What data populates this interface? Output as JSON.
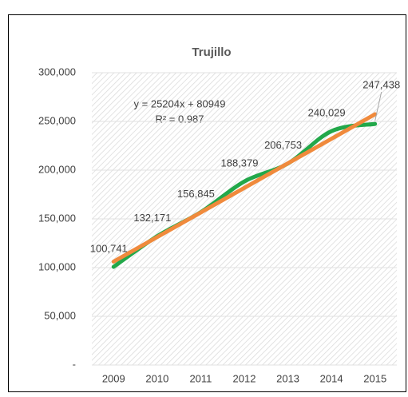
{
  "chart_data": {
    "type": "line",
    "title": "Trujillo",
    "categories": [
      "2009",
      "2010",
      "2011",
      "2012",
      "2013",
      "2014",
      "2015"
    ],
    "series": [
      {
        "name": "Trujillo",
        "color": "#22a84a",
        "values": [
          100741,
          132171,
          156845,
          188379,
          206753,
          240029,
          247438
        ],
        "value_labels": [
          "100,741",
          "132,171",
          "156,845",
          "188,379",
          "206,753",
          "240,029",
          "247,438"
        ]
      }
    ],
    "trendline": {
      "slope": 25204,
      "intercept": 80949,
      "color": "#f08a3c",
      "equation": "y = 25204x + 80949",
      "r2": "R² = 0.987"
    },
    "ylim": [
      0,
      300000
    ],
    "yticks": [
      {
        "value": 0,
        "label": "-"
      },
      {
        "value": 50000,
        "label": "50,000"
      },
      {
        "value": 100000,
        "label": "100,000"
      },
      {
        "value": 150000,
        "label": "150,000"
      },
      {
        "value": 200000,
        "label": "200,000"
      },
      {
        "value": 250000,
        "label": "250,000"
      },
      {
        "value": 300000,
        "label": "300,000"
      }
    ],
    "grid": true
  }
}
